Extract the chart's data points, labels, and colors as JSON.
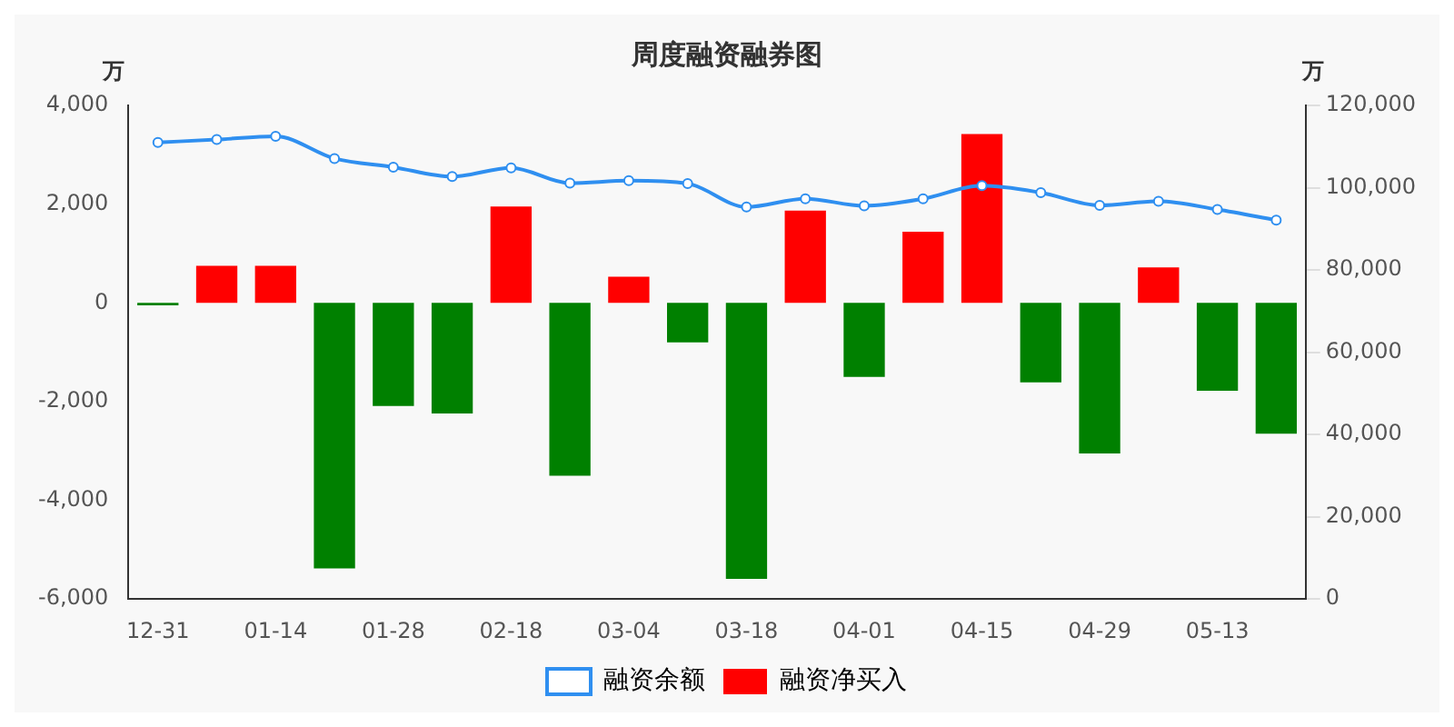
{
  "chart_data": {
    "type": "bar",
    "title": "周度融资融券图",
    "ylabel": "万",
    "y2label": "万",
    "categories": [
      "12-31",
      null,
      "01-14",
      null,
      "01-28",
      null,
      "02-18",
      null,
      "03-04",
      null,
      "03-18",
      null,
      "04-01",
      null,
      "04-15",
      null,
      "04-29",
      null,
      "05-13",
      null
    ],
    "series": [
      {
        "name": "融资余额",
        "type": "line",
        "axis": "y2",
        "color": "#2f8ff0",
        "marker": "circle",
        "values": [
          111000,
          111700,
          112500,
          107100,
          105000,
          102700,
          104800,
          101100,
          101700,
          101000,
          95300,
          97300,
          95600,
          97300,
          100500,
          98800,
          95700,
          96700,
          94700,
          92100
        ]
      },
      {
        "name": "融资净买入",
        "color": "#ff0000",
        "colors": [
          "#008000",
          "#ff0000",
          "#ff0000",
          "#008000",
          "#008000",
          "#008000",
          "#ff0000",
          "#008000",
          "#ff0000",
          "#008000",
          "#008000",
          "#ff0000",
          "#008000",
          "#ff0000",
          "#ff0000",
          "#008000",
          "#008000",
          "#ff0000",
          "#008000",
          "#008000"
        ],
        "values": [
          -50,
          750,
          750,
          -5380,
          -2090,
          -2240,
          1950,
          -3500,
          530,
          -800,
          -5590,
          1870,
          -1500,
          1440,
          3420,
          -1610,
          -3050,
          720,
          -1780,
          -2650
        ]
      }
    ],
    "ylim": [
      -6000,
      4000
    ],
    "yticks": [
      {
        "value": -6000,
        "label": "-6,000"
      },
      {
        "value": -4000,
        "label": "-4,000"
      },
      {
        "value": -2000,
        "label": "-2,000"
      },
      0,
      {
        "value": 2000,
        "label": "2,000"
      },
      {
        "value": 4000,
        "label": "4,000"
      }
    ],
    "y2lim": [
      0,
      120000
    ],
    "y2ticks": [
      0,
      {
        "value": 20000,
        "label": "20,000"
      },
      {
        "value": 40000,
        "label": "40,000"
      },
      {
        "value": 60000,
        "label": "60,000"
      },
      {
        "value": 80000,
        "label": "80,000"
      },
      {
        "value": 100000,
        "label": "100,000"
      },
      {
        "value": 120000,
        "label": "120,000"
      }
    ],
    "grid": false,
    "legend": "bottom"
  }
}
